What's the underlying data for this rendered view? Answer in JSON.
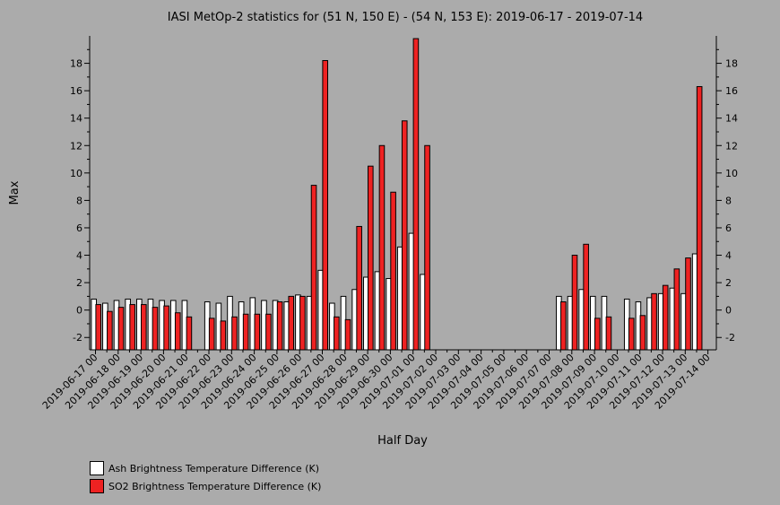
{
  "chart_data": {
    "type": "bar",
    "title": "IASI MetOp-2 statistics for (51 N, 150 E) - (54 N, 153 E): 2019-06-17 - 2019-07-14",
    "xlabel": "Half Day",
    "ylabel": "Max",
    "ylim": [
      -2.9,
      20
    ],
    "y_ticks": [
      -2,
      0,
      2,
      4,
      6,
      8,
      10,
      12,
      14,
      16,
      18
    ],
    "grid": false,
    "legend_position": "bottom-left",
    "categories": [
      "2019-06-17 00",
      "2019-06-17 12",
      "2019-06-18 00",
      "2019-06-18 12",
      "2019-06-19 00",
      "2019-06-19 12",
      "2019-06-20 00",
      "2019-06-20 12",
      "2019-06-21 00",
      "2019-06-21 12",
      "2019-06-22 00",
      "2019-06-22 12",
      "2019-06-23 00",
      "2019-06-23 12",
      "2019-06-24 00",
      "2019-06-24 12",
      "2019-06-25 00",
      "2019-06-25 12",
      "2019-06-26 00",
      "2019-06-26 12",
      "2019-06-27 00",
      "2019-06-27 12",
      "2019-06-28 00",
      "2019-06-28 12",
      "2019-06-29 00",
      "2019-06-29 12",
      "2019-06-30 00",
      "2019-06-30 12",
      "2019-07-01 00",
      "2019-07-01 12",
      "2019-07-02 00",
      "2019-07-02 12",
      "2019-07-03 00",
      "2019-07-03 12",
      "2019-07-04 00",
      "2019-07-04 12",
      "2019-07-05 00",
      "2019-07-05 12",
      "2019-07-06 00",
      "2019-07-06 12",
      "2019-07-07 00",
      "2019-07-07 12",
      "2019-07-08 00",
      "2019-07-08 12",
      "2019-07-09 00",
      "2019-07-09 12",
      "2019-07-10 00",
      "2019-07-10 12",
      "2019-07-11 00",
      "2019-07-11 12",
      "2019-07-12 00",
      "2019-07-12 12",
      "2019-07-13 00",
      "2019-07-13 12",
      "2019-07-14 00"
    ],
    "x_tick_labels": [
      "2019-06-17 00",
      "2019-06-18 00",
      "2019-06-19 00",
      "2019-06-20 00",
      "2019-06-21 00",
      "2019-06-22 00",
      "2019-06-23 00",
      "2019-06-24 00",
      "2019-06-25 00",
      "2019-06-26 00",
      "2019-06-27 00",
      "2019-06-28 00",
      "2019-06-29 00",
      "2019-06-30 00",
      "2019-07-01 00",
      "2019-07-02 00",
      "2019-07-03 00",
      "2019-07-04 00",
      "2019-07-05 00",
      "2019-07-06 00",
      "2019-07-07 00",
      "2019-07-08 00",
      "2019-07-09 00",
      "2019-07-10 00",
      "2019-07-11 00",
      "2019-07-12 00",
      "2019-07-13 00",
      "2019-07-14 00"
    ],
    "series": [
      {
        "name": "Ash Brightness Temperature Difference (K)",
        "color": "#ffffff",
        "values": [
          0.8,
          0.5,
          0.7,
          0.8,
          0.8,
          0.8,
          0.7,
          0.7,
          0.7,
          null,
          0.6,
          0.5,
          1.0,
          0.6,
          0.9,
          0.7,
          0.7,
          0.6,
          1.1,
          1.0,
          2.9,
          0.5,
          1.0,
          1.5,
          2.4,
          2.8,
          2.3,
          4.6,
          5.6,
          2.6,
          null,
          null,
          null,
          null,
          null,
          null,
          null,
          null,
          null,
          null,
          null,
          1.0,
          1.0,
          1.5,
          1.0,
          1.0,
          null,
          0.8,
          0.6,
          0.9,
          1.2,
          1.6,
          1.2,
          4.1,
          null
        ]
      },
      {
        "name": "SO2 Brightness Temperature Difference (K)",
        "color": "#ee2222",
        "values": [
          0.4,
          -0.1,
          0.2,
          0.4,
          0.4,
          0.2,
          0.3,
          -0.2,
          -0.5,
          null,
          -0.6,
          -0.8,
          -0.5,
          -0.3,
          -0.3,
          -0.3,
          0.6,
          1.0,
          1.0,
          9.1,
          18.2,
          -0.5,
          -0.7,
          6.1,
          10.5,
          12.0,
          8.6,
          13.8,
          19.8,
          12.0,
          null,
          null,
          null,
          null,
          null,
          null,
          null,
          null,
          null,
          null,
          null,
          0.6,
          4.0,
          4.8,
          -0.6,
          -0.5,
          null,
          -0.6,
          -0.4,
          1.2,
          1.8,
          3.0,
          3.8,
          16.3,
          null
        ]
      }
    ]
  }
}
